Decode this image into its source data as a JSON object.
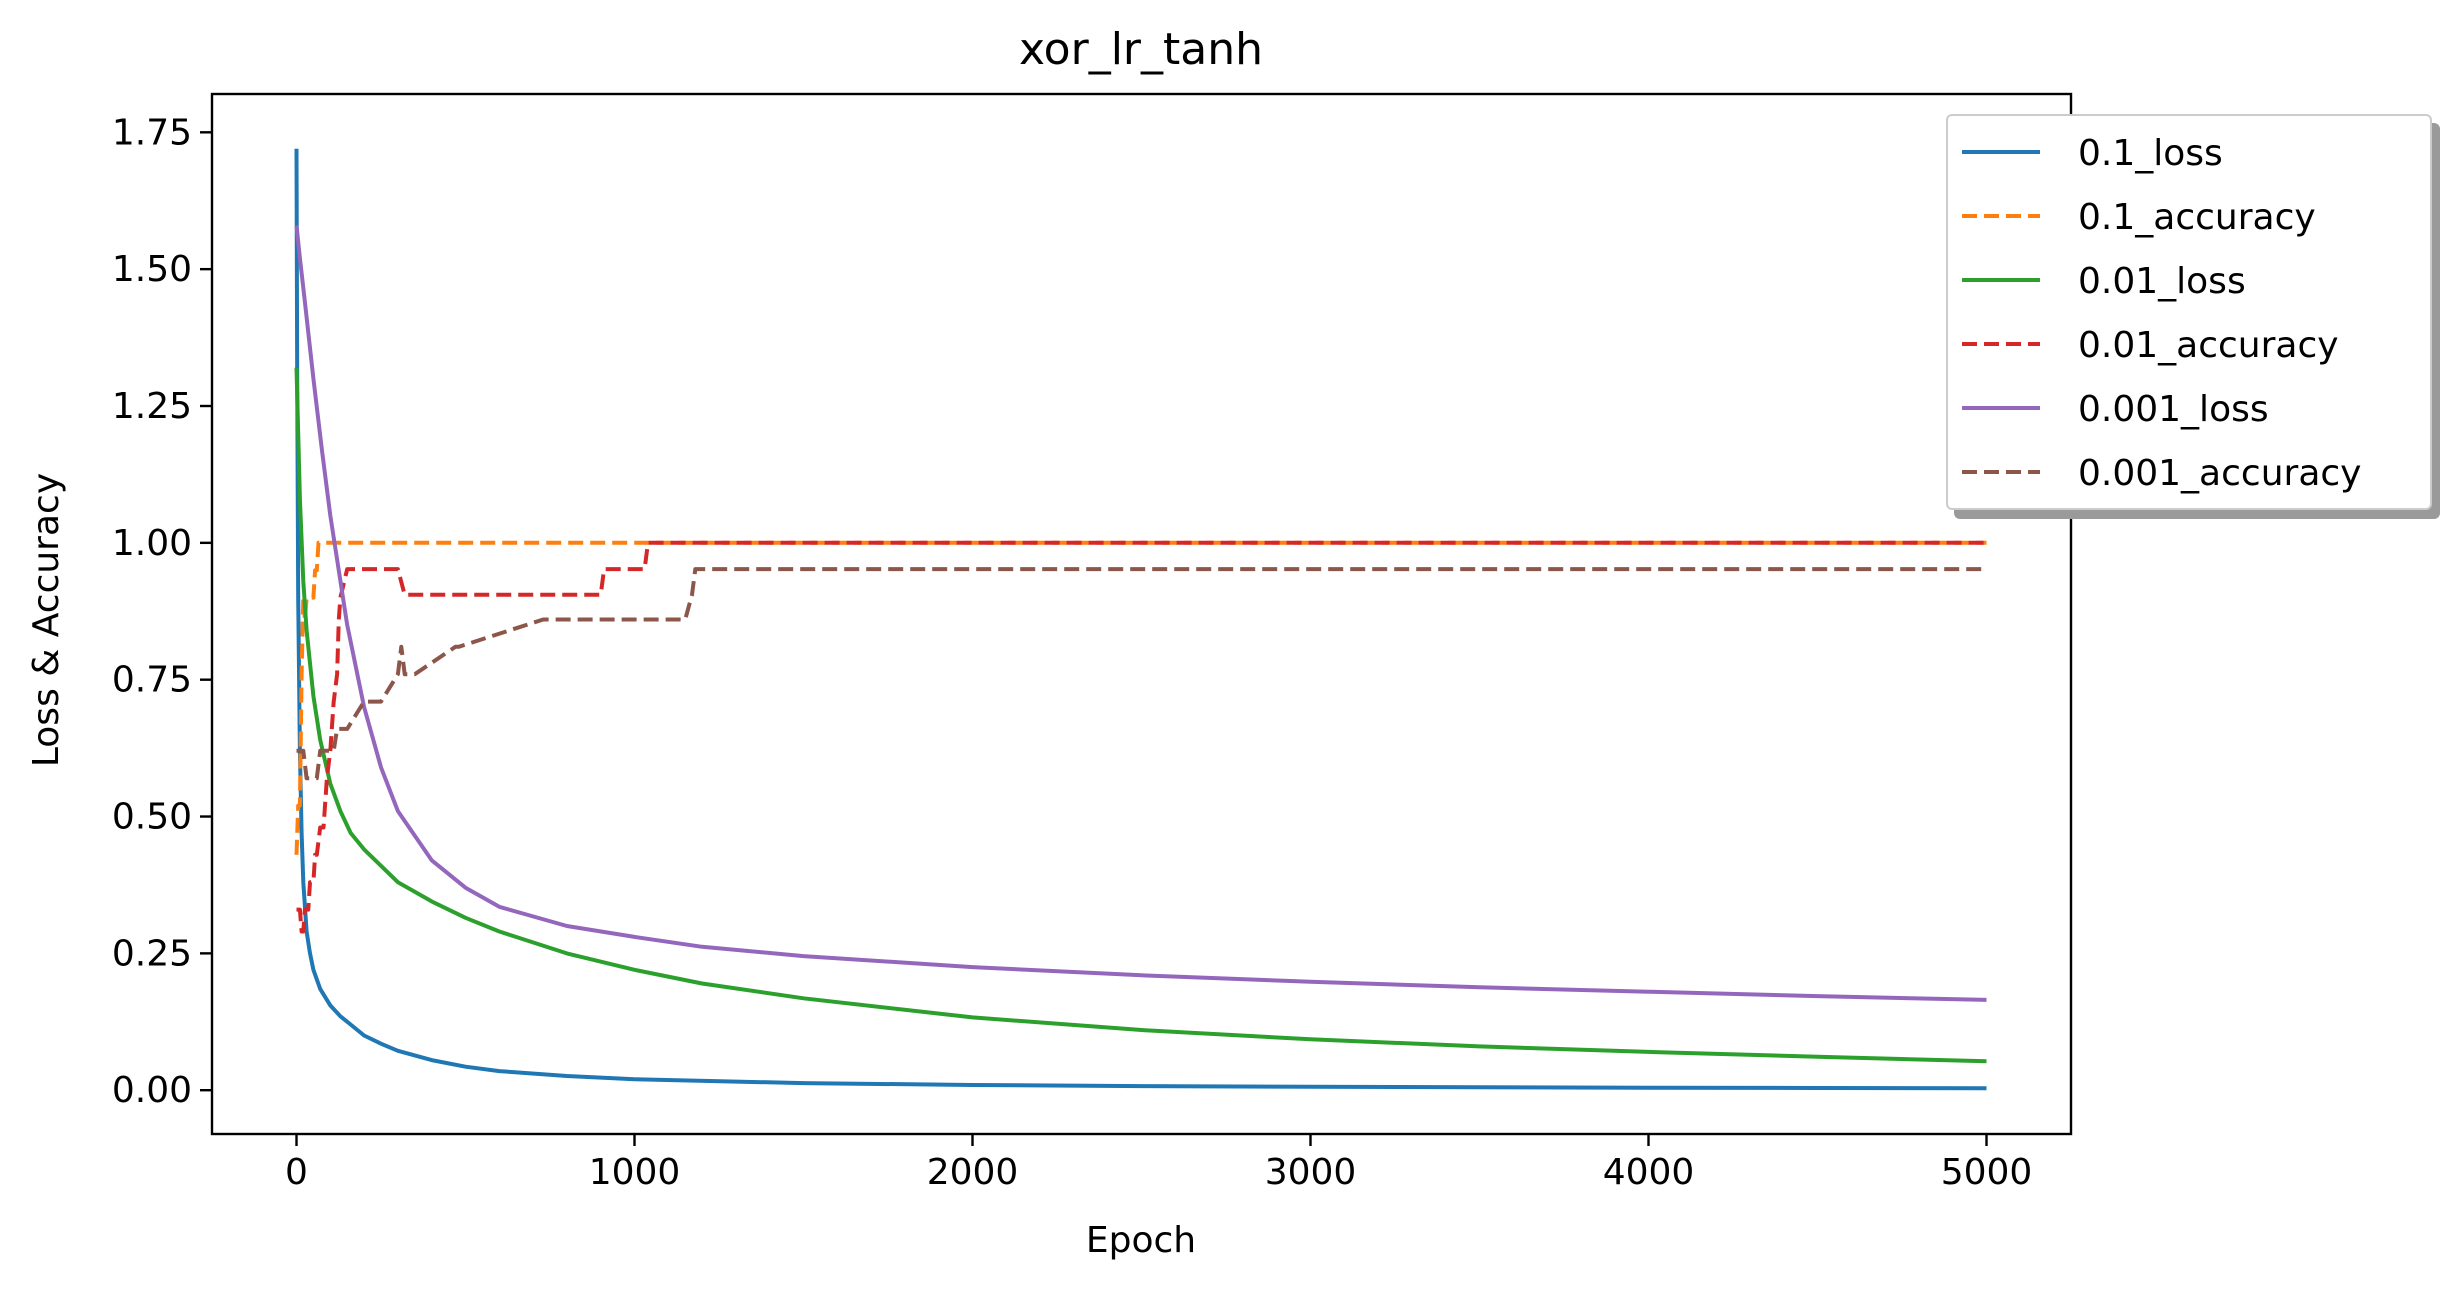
{
  "chart_data": {
    "type": "line",
    "title": "xor_lr_tanh",
    "xlabel": "Epoch",
    "ylabel": "Loss & Accuracy",
    "xlim": [
      -250,
      5250
    ],
    "ylim": [
      -0.08,
      1.82
    ],
    "xticks": [
      0,
      1000,
      2000,
      3000,
      4000,
      5000
    ],
    "xtick_labels": [
      "0",
      "1000",
      "2000",
      "3000",
      "4000",
      "5000"
    ],
    "yticks": [
      0.0,
      0.25,
      0.5,
      0.75,
      1.0,
      1.25,
      1.5,
      1.75
    ],
    "ytick_labels": [
      "0.00",
      "0.25",
      "0.50",
      "0.75",
      "1.00",
      "1.25",
      "1.50",
      "1.75"
    ],
    "grid": false,
    "legend_position": "upper-right-outside",
    "series": [
      {
        "name": "0.1_loss",
        "color": "#1f77b4",
        "style": "solid",
        "x": [
          0,
          2,
          5,
          10,
          15,
          20,
          30,
          40,
          50,
          70,
          100,
          130,
          160,
          200,
          250,
          300,
          400,
          500,
          600,
          800,
          1000,
          1500,
          2000,
          2500,
          3000,
          3500,
          4000,
          4500,
          5000
        ],
        "y": [
          1.72,
          1.3,
          0.9,
          0.62,
          0.47,
          0.38,
          0.29,
          0.25,
          0.22,
          0.185,
          0.155,
          0.135,
          0.12,
          0.1,
          0.085,
          0.072,
          0.055,
          0.043,
          0.035,
          0.026,
          0.02,
          0.013,
          0.0095,
          0.0075,
          0.0062,
          0.0053,
          0.0046,
          0.004,
          0.0036
        ]
      },
      {
        "name": "0.1_accuracy",
        "color": "#ff7f0e",
        "style": "dashed",
        "x": [
          0,
          5,
          10,
          15,
          20,
          25,
          30,
          40,
          50,
          55,
          60,
          65,
          70,
          5000
        ],
        "y": [
          0.43,
          0.52,
          0.52,
          0.76,
          0.9,
          0.86,
          0.9,
          0.9,
          0.9,
          0.95,
          0.95,
          1.0,
          1.0,
          1.0
        ]
      },
      {
        "name": "0.01_loss",
        "color": "#2ca02c",
        "style": "solid",
        "x": [
          0,
          5,
          10,
          20,
          30,
          50,
          70,
          100,
          130,
          160,
          200,
          250,
          300,
          400,
          500,
          600,
          800,
          1000,
          1200,
          1500,
          2000,
          2500,
          3000,
          3500,
          4000,
          4500,
          5000
        ],
        "y": [
          1.32,
          1.2,
          1.08,
          0.93,
          0.84,
          0.72,
          0.64,
          0.56,
          0.51,
          0.47,
          0.44,
          0.41,
          0.38,
          0.345,
          0.315,
          0.29,
          0.25,
          0.22,
          0.195,
          0.168,
          0.133,
          0.11,
          0.093,
          0.08,
          0.07,
          0.061,
          0.053
        ]
      },
      {
        "name": "0.01_accuracy",
        "color": "#d62728",
        "style": "dashed",
        "x": [
          0,
          10,
          15,
          20,
          25,
          30,
          35,
          40,
          45,
          50,
          55,
          60,
          70,
          80,
          90,
          100,
          110,
          120,
          125,
          130,
          150,
          300,
          320,
          900,
          910,
          1030,
          1040,
          5000
        ],
        "y": [
          0.33,
          0.33,
          0.29,
          0.29,
          0.33,
          0.33,
          0.33,
          0.38,
          0.38,
          0.38,
          0.43,
          0.43,
          0.48,
          0.48,
          0.57,
          0.62,
          0.71,
          0.76,
          0.86,
          0.9,
          0.952,
          0.952,
          0.905,
          0.905,
          0.952,
          0.952,
          1.0,
          1.0
        ]
      },
      {
        "name": "0.001_loss",
        "color": "#9467bd",
        "style": "solid",
        "x": [
          0,
          10,
          25,
          50,
          75,
          100,
          150,
          200,
          250,
          300,
          400,
          500,
          600,
          800,
          1000,
          1200,
          1500,
          2000,
          2500,
          3000,
          3500,
          4000,
          4500,
          5000
        ],
        "y": [
          1.58,
          1.52,
          1.44,
          1.3,
          1.17,
          1.05,
          0.85,
          0.7,
          0.59,
          0.51,
          0.42,
          0.37,
          0.335,
          0.3,
          0.28,
          0.262,
          0.245,
          0.225,
          0.21,
          0.198,
          0.188,
          0.18,
          0.172,
          0.165
        ]
      },
      {
        "name": "0.001_accuracy",
        "color": "#8c564b",
        "style": "dashed",
        "x": [
          0,
          20,
          30,
          45,
          60,
          70,
          90,
          100,
          110,
          120,
          130,
          150,
          200,
          250,
          300,
          310,
          320,
          330,
          350,
          470,
          480,
          730,
          740,
          1150,
          1170,
          1180,
          5000
        ],
        "y": [
          0.62,
          0.62,
          0.57,
          0.57,
          0.57,
          0.62,
          0.62,
          0.62,
          0.62,
          0.66,
          0.66,
          0.66,
          0.71,
          0.71,
          0.76,
          0.81,
          0.76,
          0.76,
          0.76,
          0.81,
          0.81,
          0.86,
          0.86,
          0.86,
          0.905,
          0.952,
          0.952
        ]
      }
    ]
  }
}
